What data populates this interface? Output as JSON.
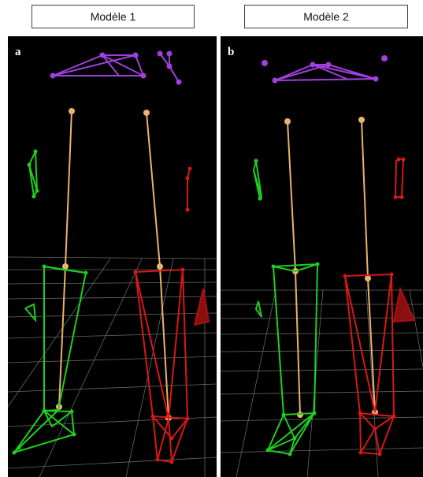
{
  "headers": {
    "left_title": "Modèle 1",
    "right_title": "Modèle 2"
  },
  "panels": {
    "left_letter": "a",
    "right_letter": "b"
  },
  "colors": {
    "background": "#000000",
    "skeleton_bone": "#e8b36e",
    "left_limb": "#1fcf1f",
    "right_limb": "#d81818",
    "head_markers": "#a040e0",
    "grid": "#8a8a8a"
  }
}
